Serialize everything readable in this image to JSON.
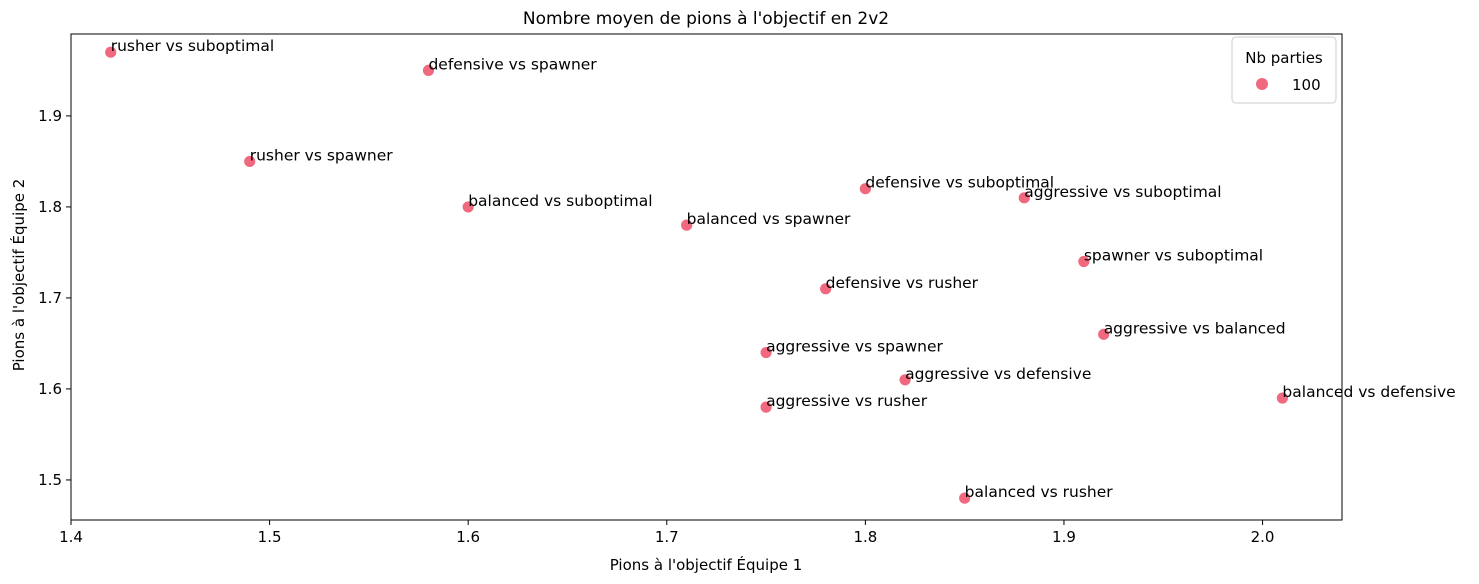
{
  "chart_data": {
    "type": "scatter",
    "title": "Nombre moyen de pions à l'objectif en 2v2",
    "xlabel": "Pions à l'objectif Équipe 1",
    "ylabel": "Pions à l'objectif Équipe 2",
    "xlim": [
      1.4,
      2.04
    ],
    "ylim": [
      1.456,
      1.99
    ],
    "xticks": [
      1.4,
      1.5,
      1.6,
      1.7,
      1.8,
      1.9,
      2.0
    ],
    "xtick_labels": [
      "1.4",
      "1.5",
      "1.6",
      "1.7",
      "1.8",
      "1.9",
      "2.0"
    ],
    "yticks": [
      1.5,
      1.6,
      1.7,
      1.8,
      1.9
    ],
    "ytick_labels": [
      "1.5",
      "1.6",
      "1.7",
      "1.8",
      "1.9"
    ],
    "grid": false,
    "marker_color": "#f0697f",
    "legend": {
      "title": "Nb parties",
      "placement": "top-right",
      "entries": [
        {
          "label": "100",
          "color": "#f0697f"
        }
      ]
    },
    "points": [
      {
        "label": "rusher vs suboptimal",
        "x": 1.42,
        "y": 1.97
      },
      {
        "label": "defensive vs spawner",
        "x": 1.58,
        "y": 1.95
      },
      {
        "label": "rusher vs spawner",
        "x": 1.49,
        "y": 1.85
      },
      {
        "label": "balanced vs suboptimal",
        "x": 1.6,
        "y": 1.8
      },
      {
        "label": "defensive vs suboptimal",
        "x": 1.8,
        "y": 1.82
      },
      {
        "label": "aggressive vs suboptimal",
        "x": 1.88,
        "y": 1.81
      },
      {
        "label": "balanced vs spawner",
        "x": 1.71,
        "y": 1.78
      },
      {
        "label": "spawner vs suboptimal",
        "x": 1.91,
        "y": 1.74
      },
      {
        "label": "defensive vs rusher",
        "x": 1.78,
        "y": 1.71
      },
      {
        "label": "aggressive vs balanced",
        "x": 1.92,
        "y": 1.66
      },
      {
        "label": "aggressive vs spawner",
        "x": 1.75,
        "y": 1.64
      },
      {
        "label": "aggressive vs defensive",
        "x": 1.82,
        "y": 1.61
      },
      {
        "label": "balanced vs defensive",
        "x": 2.01,
        "y": 1.59
      },
      {
        "label": "aggressive vs rusher",
        "x": 1.75,
        "y": 1.58
      },
      {
        "label": "balanced vs rusher",
        "x": 1.85,
        "y": 1.48
      }
    ]
  }
}
